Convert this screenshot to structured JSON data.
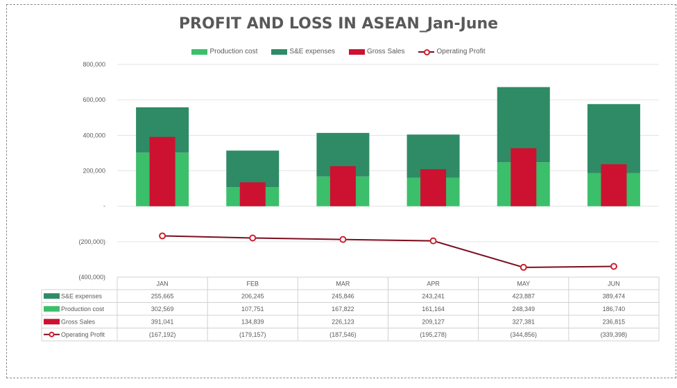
{
  "colors": {
    "production": "#3bbf6a",
    "sge": "#2e8b66",
    "gross": "#cc1230",
    "operating_line": "#7b0d1e",
    "operating_marker": "#cc1f2b",
    "grid": "#e3e3e3",
    "text": "#595959"
  },
  "chart_data": {
    "type": "bar",
    "title": "PROFIT AND LOSS IN ASEAN_Jan-June",
    "categories": [
      "JAN",
      "FEB",
      "MAR",
      "APR",
      "MAY",
      "JUN"
    ],
    "series": [
      {
        "name": "Production cost",
        "kind": "stacked-bar",
        "values": [
          302569,
          107751,
          167822,
          161164,
          248349,
          186740
        ],
        "table_text": [
          "302,569",
          "107,751",
          "167,822",
          "161,164",
          "248,349",
          "186,740"
        ]
      },
      {
        "name": "S&E expenses",
        "kind": "stacked-bar",
        "values": [
          255665,
          206245,
          245846,
          243241,
          423887,
          389474
        ],
        "table_text": [
          "255,665",
          "206,245",
          "245,846",
          "243,241",
          "423,887",
          "389,474"
        ]
      },
      {
        "name": "Gross Sales",
        "kind": "bar",
        "values": [
          391041,
          134839,
          226123,
          209127,
          327381,
          236815
        ],
        "table_text": [
          "391,041",
          "134,839",
          "226,123",
          "209,127",
          "327,381",
          "236,815"
        ]
      },
      {
        "name": "Operating Profit",
        "kind": "line",
        "values": [
          -167192,
          -179157,
          -187546,
          -195278,
          -344856,
          -339398
        ],
        "table_text": [
          "(167,192)",
          "(179,157)",
          "(187,546)",
          "(195,278)",
          "(344,856)",
          "(339,398)"
        ]
      }
    ],
    "legend_order": [
      "Production cost",
      "S&E expenses",
      "Gross Sales",
      "Operating Profit"
    ],
    "table_order": [
      "S&E expenses",
      "Production cost",
      "Gross Sales",
      "Operating Profit"
    ],
    "ylim": [
      -400000,
      800000
    ],
    "yticks": [
      800000,
      600000,
      400000,
      200000,
      0,
      -200000,
      -400000
    ],
    "ytick_labels": [
      "800,000",
      "600,000",
      "400,000",
      "200,000",
      "-",
      "(200,000)",
      "(400,000)"
    ],
    "grid": true,
    "legend_position": "top-center",
    "data_table": true
  }
}
